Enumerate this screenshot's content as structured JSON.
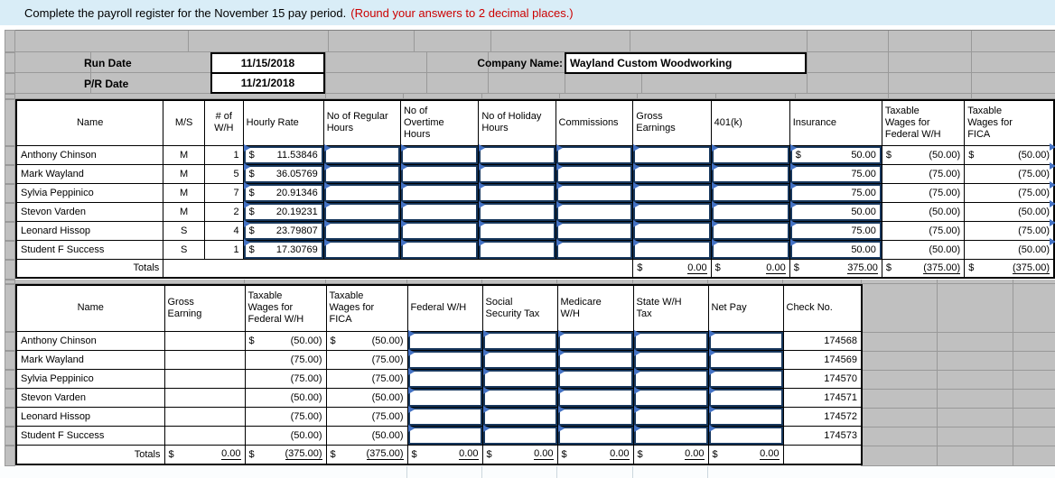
{
  "instruction": {
    "text": "Complete the payroll register for the November 15 pay period.",
    "note": "(Round your answers to 2 decimal places.)"
  },
  "meta": {
    "run_date_label": "Run Date",
    "run_date": "11/15/2018",
    "pr_date_label": "P/R Date",
    "pr_date": "11/21/2018",
    "company_label": "Company Name:",
    "company_name": "Wayland Custom Woodworking"
  },
  "colors": {
    "banner_bg": "#d9edf7",
    "note_red": "#cc0000",
    "grid_gray": "#c0c0c0",
    "input_border": "#17375d",
    "flag_blue": "#4472c4"
  },
  "table1": {
    "headers": {
      "name": "Name",
      "ms": "M/S",
      "wh": "# of\nW/H",
      "rate": "Hourly Rate",
      "reg": "No of Regular\nHours",
      "ot": "No of\nOvertime\nHours",
      "hol": "No of Holiday\nHours",
      "comm": "Commissions",
      "gross": "Gross\nEarnings",
      "k401": "401(k)",
      "ins": "Insurance",
      "fedw": "Taxable\nWages for\nFederal W/H",
      "fica": "Taxable\nWages for\nFICA"
    },
    "rows": [
      {
        "name": "Anthony Chinson",
        "ms": "M",
        "wh": "1",
        "rate_cur": "$",
        "rate": "11.53846",
        "ins_cur": "$",
        "ins": "50.00",
        "fedw_cur": "$",
        "fedw": "(50.00)",
        "fica_cur": "$",
        "fica": "(50.00)"
      },
      {
        "name": "Mark Wayland",
        "ms": "M",
        "wh": "5",
        "rate_cur": "$",
        "rate": "36.05769",
        "ins_cur": "",
        "ins": "75.00",
        "fedw_cur": "",
        "fedw": "(75.00)",
        "fica_cur": "",
        "fica": "(75.00)"
      },
      {
        "name": "Sylvia Peppinico",
        "ms": "M",
        "wh": "7",
        "rate_cur": "$",
        "rate": "20.91346",
        "ins_cur": "",
        "ins": "75.00",
        "fedw_cur": "",
        "fedw": "(75.00)",
        "fica_cur": "",
        "fica": "(75.00)"
      },
      {
        "name": "Stevon Varden",
        "ms": "M",
        "wh": "2",
        "rate_cur": "$",
        "rate": "20.19231",
        "ins_cur": "",
        "ins": "50.00",
        "fedw_cur": "",
        "fedw": "(50.00)",
        "fica_cur": "",
        "fica": "(50.00)"
      },
      {
        "name": "Leonard Hissop",
        "ms": "S",
        "wh": "4",
        "rate_cur": "$",
        "rate": "23.79807",
        "ins_cur": "",
        "ins": "75.00",
        "fedw_cur": "",
        "fedw": "(75.00)",
        "fica_cur": "",
        "fica": "(75.00)"
      },
      {
        "name": "Student F Success",
        "ms": "S",
        "wh": "1",
        "rate_cur": "$",
        "rate": "17.30769",
        "ins_cur": "",
        "ins": "50.00",
        "fedw_cur": "",
        "fedw": "(50.00)",
        "fica_cur": "",
        "fica": "(50.00)"
      }
    ],
    "totals": {
      "label": "Totals",
      "gross_cur": "$",
      "gross": "0.00",
      "k401_cur": "$",
      "k401": "0.00",
      "ins_cur": "$",
      "ins": "375.00",
      "fedw_cur": "$",
      "fedw": "(375.00)",
      "fica_cur": "$",
      "fica": "(375.00)"
    }
  },
  "table2": {
    "headers": {
      "name": "Name",
      "gross": "Gross\nEarning",
      "fedw": "Taxable\nWages for\nFederal W/H",
      "fica": "Taxable\nWages for\nFICA",
      "fwh": "Federal W/H",
      "ss": "Social\nSecurity Tax",
      "med": "Medicare\nW/H",
      "state": "State W/H\nTax",
      "net": "Net Pay",
      "check": "Check No."
    },
    "rows": [
      {
        "name": "Anthony Chinson",
        "fedw_cur": "$",
        "fedw": "(50.00)",
        "fica_cur": "$",
        "fica": "(50.00)",
        "check": "174568"
      },
      {
        "name": "Mark Wayland",
        "fedw_cur": "",
        "fedw": "(75.00)",
        "fica_cur": "",
        "fica": "(75.00)",
        "check": "174569"
      },
      {
        "name": "Sylvia Peppinico",
        "fedw_cur": "",
        "fedw": "(75.00)",
        "fica_cur": "",
        "fica": "(75.00)",
        "check": "174570"
      },
      {
        "name": "Stevon Varden",
        "fedw_cur": "",
        "fedw": "(50.00)",
        "fica_cur": "",
        "fica": "(50.00)",
        "check": "174571"
      },
      {
        "name": "Leonard Hissop",
        "fedw_cur": "",
        "fedw": "(75.00)",
        "fica_cur": "",
        "fica": "(75.00)",
        "check": "174572"
      },
      {
        "name": "Student F Success",
        "fedw_cur": "",
        "fedw": "(50.00)",
        "fica_cur": "",
        "fica": "(50.00)",
        "check": "174573"
      }
    ],
    "totals": {
      "label": "Totals",
      "gross_cur": "$",
      "gross": "0.00",
      "fedw_cur": "$",
      "fedw": "(375.00)",
      "fica_cur": "$",
      "fica": "(375.00)",
      "fwh_cur": "$",
      "fwh": "0.00",
      "ss_cur": "$",
      "ss": "0.00",
      "med_cur": "$",
      "med": "0.00",
      "state_cur": "$",
      "state": "0.00",
      "net_cur": "$",
      "net": "0.00"
    }
  }
}
